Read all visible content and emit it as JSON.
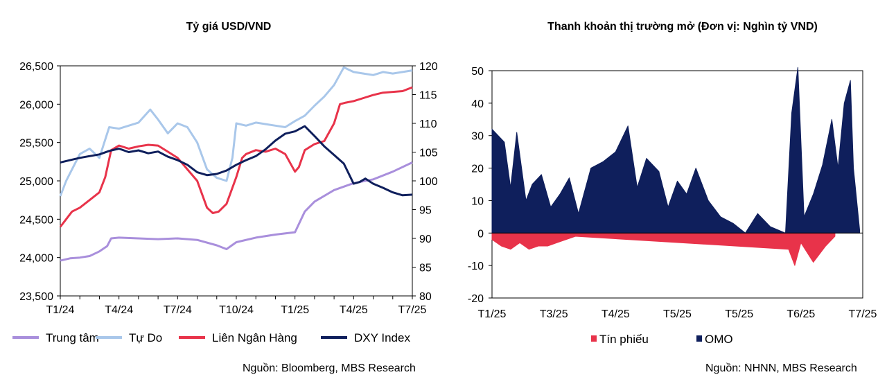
{
  "colors": {
    "trung_tam": "#a98fdc",
    "tu_do": "#a9c7ea",
    "lien_ngan_hang": "#e8334a",
    "dxy": "#0f1f5c",
    "tin_phieu": "#e8334a",
    "omo": "#0f1f5c"
  },
  "chart_data": [
    {
      "type": "line",
      "title": "Tỷ giá USD/VND",
      "source": "Nguồn: Bloomberg, MBS Research",
      "grid": false,
      "legend_position": "bottom",
      "x_ticks": [
        "T1/24",
        "T4/24",
        "T7/24",
        "T10/24",
        "T1/25",
        "T4/25",
        "T7/25"
      ],
      "xlim": [
        0,
        18
      ],
      "y_left": {
        "lim": [
          23500,
          26500
        ],
        "ticks": [
          "23,500",
          "24,000",
          "24,500",
          "25,000",
          "25,500",
          "26,000",
          "26,500"
        ]
      },
      "y_right": {
        "lim": [
          80,
          120
        ],
        "ticks": [
          "80",
          "85",
          "90",
          "95",
          "100",
          "105",
          "110",
          "115",
          "120"
        ]
      },
      "series": [
        {
          "name": "Trung tâm",
          "axis": "left",
          "color_key": "trung_tam",
          "x": [
            0,
            0.5,
            1.0,
            1.5,
            2.0,
            2.4,
            2.6,
            3.0,
            4.0,
            5.0,
            6.0,
            7.0,
            8.0,
            8.5,
            9.0,
            10.0,
            11.0,
            12.0,
            12.5,
            13.0,
            14.0,
            15.0,
            16.0,
            17.0,
            18.0
          ],
          "y": [
            23960,
            23990,
            24000,
            24020,
            24080,
            24150,
            24250,
            24260,
            24250,
            24240,
            24250,
            24230,
            24160,
            24110,
            24200,
            24260,
            24300,
            24330,
            24600,
            24730,
            24880,
            24970,
            25020,
            25120,
            25240
          ]
        },
        {
          "name": "Tự Do",
          "axis": "left",
          "color_key": "tu_do",
          "x": [
            0,
            0.3,
            0.6,
            1.0,
            1.5,
            2.0,
            2.5,
            3.0,
            3.5,
            4.0,
            4.6,
            5.0,
            5.5,
            6.0,
            6.5,
            7.0,
            7.5,
            8.0,
            8.5,
            8.8,
            9.0,
            9.5,
            10.0,
            10.5,
            11.0,
            11.5,
            12.0,
            12.5,
            13.0,
            13.5,
            14.0,
            14.5,
            15.0,
            15.5,
            16.0,
            16.5,
            17.0,
            17.5,
            18.0
          ],
          "y": [
            24800,
            25000,
            25150,
            25350,
            25420,
            25300,
            25700,
            25680,
            25720,
            25760,
            25930,
            25800,
            25620,
            25750,
            25700,
            25500,
            25150,
            25040,
            25000,
            25300,
            25750,
            25720,
            25760,
            25740,
            25720,
            25700,
            25780,
            25850,
            25980,
            26100,
            26250,
            26480,
            26420,
            26400,
            26380,
            26420,
            26400,
            26420,
            26440
          ]
        },
        {
          "name": "Liên Ngân Hàng",
          "axis": "left",
          "color_key": "lien_ngan_hang",
          "x": [
            0,
            0.3,
            0.6,
            1.0,
            1.5,
            2.0,
            2.3,
            2.6,
            3.0,
            3.5,
            4.0,
            4.5,
            5.0,
            5.5,
            6.0,
            6.5,
            7.0,
            7.5,
            7.8,
            8.1,
            8.5,
            9.0,
            9.3,
            9.5,
            10.0,
            10.5,
            11.0,
            11.5,
            12.0,
            12.2,
            12.5,
            13.0,
            13.5,
            14.0,
            14.3,
            14.6,
            15.0,
            15.5,
            16.0,
            16.5,
            17.0,
            17.5,
            18.0
          ],
          "y": [
            24400,
            24500,
            24600,
            24650,
            24750,
            24850,
            25050,
            25400,
            25460,
            25420,
            25450,
            25470,
            25460,
            25380,
            25300,
            25150,
            25000,
            24650,
            24580,
            24600,
            24700,
            25050,
            25300,
            25350,
            25400,
            25380,
            25420,
            25350,
            25120,
            25180,
            25400,
            25480,
            25520,
            25750,
            26000,
            26020,
            26040,
            26080,
            26120,
            26150,
            26160,
            26170,
            26220
          ]
        },
        {
          "name": "DXY Index",
          "axis": "right",
          "color_key": "dxy",
          "x": [
            0,
            0.5,
            1.0,
            1.5,
            2.0,
            2.5,
            3.0,
            3.5,
            4.0,
            4.5,
            5.0,
            5.5,
            6.0,
            6.5,
            7.0,
            7.5,
            8.0,
            8.5,
            9.0,
            9.5,
            10.0,
            10.5,
            11.0,
            11.5,
            12.0,
            12.5,
            13.0,
            13.5,
            14.0,
            14.5,
            15.0,
            15.3,
            15.6,
            16.0,
            16.5,
            17.0,
            17.5,
            18.0
          ],
          "y": [
            103.2,
            103.6,
            104.0,
            104.3,
            104.6,
            105.2,
            105.6,
            105.0,
            105.3,
            104.8,
            105.1,
            104.2,
            103.6,
            102.8,
            101.5,
            101.0,
            101.2,
            101.8,
            102.8,
            103.6,
            104.3,
            105.5,
            107.0,
            108.2,
            108.6,
            109.5,
            107.8,
            106.0,
            104.5,
            103.0,
            99.5,
            99.8,
            100.4,
            99.5,
            98.8,
            98.0,
            97.5,
            97.6
          ]
        }
      ]
    },
    {
      "type": "area",
      "title": "Thanh khoản thị trường mở (Đơn vị: Nghìn tỷ VND)",
      "source": "Nguồn: NHNN, MBS Research",
      "grid": false,
      "legend_position": "bottom",
      "x_ticks": [
        "T1/25",
        "T3/25",
        "T4/25",
        "T5/25",
        "T5/25",
        "T6/25",
        "T7/25"
      ],
      "xlim": [
        0,
        6
      ],
      "ylim": [
        -20,
        50
      ],
      "y_ticks": [
        "-20",
        "-10",
        "0",
        "10",
        "20",
        "30",
        "40",
        "50"
      ],
      "series": [
        {
          "name": "Tín phiếu",
          "color_key": "tin_phieu",
          "x": [
            0.0,
            0.15,
            0.3,
            0.45,
            0.6,
            0.75,
            0.9,
            1.05,
            1.2,
            1.35,
            4.8,
            4.9,
            5.0,
            5.2,
            5.4,
            5.55
          ],
          "y": [
            -2,
            -4,
            -5,
            -3,
            -5,
            -4,
            -4,
            -3,
            -2,
            -1,
            -5,
            -10,
            -3,
            -9,
            -4,
            -1
          ]
        },
        {
          "name": "OMO",
          "color_key": "omo",
          "x": [
            0.0,
            0.1,
            0.2,
            0.3,
            0.4,
            0.55,
            0.65,
            0.8,
            0.95,
            1.1,
            1.25,
            1.4,
            1.6,
            1.8,
            2.0,
            2.2,
            2.35,
            2.5,
            2.7,
            2.85,
            3.0,
            3.15,
            3.3,
            3.5,
            3.7,
            3.9,
            4.1,
            4.3,
            4.5,
            4.75,
            4.85,
            4.95,
            5.05,
            5.2,
            5.35,
            5.5,
            5.6,
            5.7,
            5.8,
            5.85,
            5.95
          ],
          "y": [
            32,
            30,
            28,
            14,
            31,
            10,
            15,
            18,
            8,
            12,
            17,
            6,
            20,
            22,
            25,
            33,
            14,
            23,
            19,
            8,
            16,
            12,
            20,
            10,
            5,
            3,
            0,
            6,
            2,
            0,
            37,
            51,
            5,
            12,
            21,
            35,
            20,
            40,
            47,
            20,
            1
          ]
        }
      ]
    }
  ]
}
